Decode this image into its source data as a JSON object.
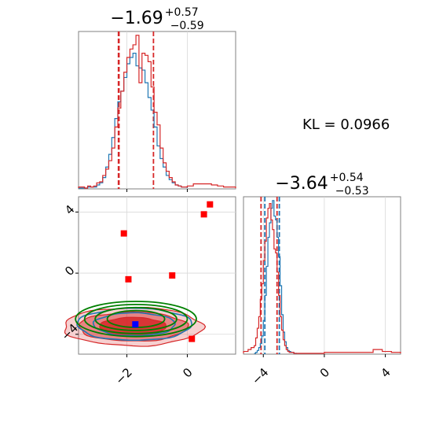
{
  "chart_data": {
    "type": "corner",
    "panel_1d_x": {
      "title": {
        "main": "−1.69",
        "sup": "+0.57",
        "sub": "−0.59"
      },
      "xlim": [
        -3.6,
        1.6
      ],
      "series": [
        {
          "name": "",
          "color": "#1f77b4",
          "bin_edges": [
            -3.6,
            -3.5,
            -3.4,
            -3.3,
            -3.2,
            -3.1,
            -3.0,
            -2.9,
            -2.8,
            -2.7,
            -2.6,
            -2.5,
            -2.4,
            -2.3,
            -2.2,
            -2.1,
            -2.0,
            -1.9,
            -1.8,
            -1.7,
            -1.6,
            -1.5,
            -1.4,
            -1.3,
            -1.2,
            -1.1,
            -1.0,
            -0.9,
            -0.8,
            -0.7,
            -0.6,
            -0.5,
            -0.4,
            -0.3,
            -0.2,
            -0.1,
            0.0
          ],
          "counts": [
            0,
            0,
            0,
            1,
            1,
            1,
            3,
            5,
            10,
            20,
            32,
            48,
            66,
            82,
            92,
            105,
            118,
            124,
            128,
            116,
            114,
            112,
            100,
            86,
            74,
            58,
            40,
            28,
            20,
            12,
            8,
            5,
            3,
            2,
            1,
            1
          ]
        },
        {
          "name": "",
          "color": "#d62728",
          "bin_edges": [
            -3.6,
            -3.5,
            -3.4,
            -3.3,
            -3.2,
            -3.1,
            -3.0,
            -2.9,
            -2.8,
            -2.7,
            -2.6,
            -2.5,
            -2.4,
            -2.3,
            -2.2,
            -2.1,
            -2.0,
            -1.9,
            -1.8,
            -1.7,
            -1.6,
            -1.5,
            -1.4,
            -1.3,
            -1.2,
            -1.1,
            -1.0,
            -0.9,
            -0.8,
            -0.7,
            -0.6,
            -0.5,
            -0.4,
            -0.3,
            -0.2,
            -0.1,
            0.0,
            0.2,
            0.4,
            0.6,
            0.8,
            1.0,
            1.2,
            1.4,
            1.6
          ],
          "counts": [
            1,
            1,
            0,
            2,
            1,
            2,
            5,
            6,
            12,
            18,
            26,
            38,
            58,
            76,
            92,
            110,
            124,
            132,
            136,
            145,
            100,
            128,
            126,
            120,
            96,
            72,
            60,
            38,
            24,
            16,
            10,
            6,
            3,
            2,
            1,
            1,
            2,
            4,
            4,
            4,
            3,
            2,
            1,
            1
          ]
        }
      ],
      "quantile_lines": {
        "color": "#d62728",
        "values": [
          -2.28,
          -2.26,
          -1.12
        ]
      }
    },
    "panel_1d_y": {
      "title": {
        "main": "−3.64",
        "sup": "+0.54",
        "sub": "−0.53"
      },
      "xlim": [
        -5.3,
        5.0
      ],
      "xticks": [
        -4,
        0,
        4
      ],
      "xtick_labels": [
        "−4",
        "0",
        "4"
      ],
      "series": [
        {
          "name": "",
          "color": "#1f77b4",
          "bin_edges": [
            -4.6,
            -4.5,
            -4.4,
            -4.3,
            -4.2,
            -4.1,
            -4.0,
            -3.9,
            -3.8,
            -3.7,
            -3.6,
            -3.5,
            -3.4,
            -3.3,
            -3.2,
            -3.1,
            -3.0,
            -2.9,
            -2.8,
            -2.7,
            -2.6,
            -2.5,
            -2.4,
            -2.3,
            -2.2,
            -2.1,
            -2.0,
            -1.9,
            -1.8
          ],
          "counts": [
            0,
            1,
            3,
            6,
            10,
            18,
            34,
            60,
            90,
            120,
            135,
            150,
            158,
            142,
            138,
            120,
            100,
            70,
            40,
            22,
            12,
            6,
            3,
            2,
            1,
            1,
            0,
            0
          ]
        },
        {
          "name": "",
          "color": "#d62728",
          "bin_edges": [
            -5.3,
            -5.0,
            -4.8,
            -4.6,
            -4.5,
            -4.4,
            -4.3,
            -4.2,
            -4.1,
            -4.0,
            -3.9,
            -3.8,
            -3.7,
            -3.6,
            -3.5,
            -3.4,
            -3.3,
            -3.2,
            -3.1,
            -3.0,
            -2.9,
            -2.8,
            -2.7,
            -2.6,
            -2.5,
            -2.4,
            -2.3,
            -2.2,
            -2.0,
            0.0,
            3.2,
            3.8,
            4.4,
            5.0
          ],
          "counts": [
            2,
            4,
            6,
            8,
            16,
            26,
            38,
            56,
            72,
            96,
            116,
            140,
            150,
            155,
            138,
            128,
            108,
            104,
            84,
            60,
            38,
            24,
            14,
            8,
            4,
            2,
            1,
            1,
            0,
            1,
            4,
            2,
            1
          ]
        }
      ],
      "quantile_lines": {
        "color": "#d62728",
        "values": [
          -4.15,
          -3.1
        ]
      },
      "quantile_lines_alt": {
        "color": "#1f77b4",
        "values": [
          -3.9,
          -2.95
        ]
      }
    },
    "panel_2d": {
      "xlim": [
        -3.6,
        1.6
      ],
      "ylim": [
        -5.3,
        5.0
      ],
      "xticks": [
        -2,
        0
      ],
      "xtick_labels": [
        "−2",
        "0"
      ],
      "yticks": [
        -4,
        0,
        4
      ],
      "ytick_labels": [
        "−4",
        "0",
        "4"
      ],
      "grid": true,
      "red_square_markers": [
        {
          "x": -2.1,
          "y": 2.6
        },
        {
          "x": -1.95,
          "y": -0.4
        },
        {
          "x": -0.5,
          "y": -0.15
        },
        {
          "x": 0.55,
          "y": 3.85
        },
        {
          "x": 0.75,
          "y": 4.5
        },
        {
          "x": 0.15,
          "y": -4.3
        }
      ],
      "blue_square_marker": {
        "x": -1.72,
        "y": -3.35
      },
      "red_contours": {
        "color": "#d62728",
        "center": [
          -1.8,
          -3.5
        ],
        "radii": [
          [
            2.3,
            1.25
          ],
          [
            1.8,
            0.95
          ],
          [
            1.1,
            0.6
          ]
        ]
      },
      "blue_contours": {
        "color": "#1f77b4",
        "center": [
          -1.75,
          -3.35
        ],
        "radii": [
          [
            1.9,
            1.05
          ],
          [
            1.35,
            0.75
          ]
        ]
      },
      "green_contours": {
        "color": "#008000",
        "center": [
          -1.7,
          -3.0
        ],
        "radii": [
          [
            2.0,
            1.15
          ],
          [
            1.7,
            0.95
          ],
          [
            1.35,
            0.75
          ],
          [
            0.95,
            0.55
          ]
        ]
      }
    },
    "annotation": "KL = 0.0966"
  }
}
